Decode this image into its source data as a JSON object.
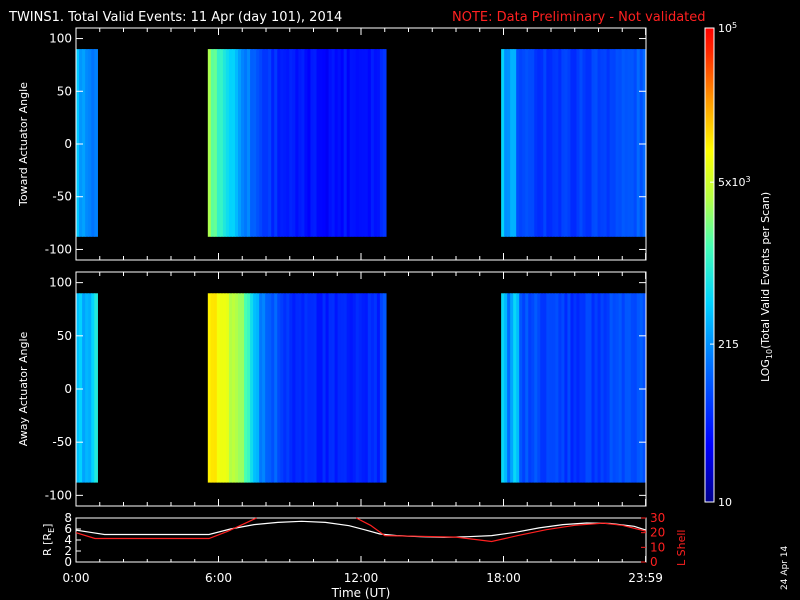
{
  "chart_data": {
    "type": "heatmap",
    "title": "TWINS1. Total Valid Events: 11 Apr (day 101), 2014",
    "note": "NOTE: Data Preliminary - Not validated",
    "xlabel": "Time (UT)",
    "x_ticks": [
      "0:00",
      "6:00",
      "12:00",
      "18:00",
      "23:59"
    ],
    "x_tick_hours": [
      0,
      6,
      12,
      18,
      23.983
    ],
    "xlim_hours": [
      0,
      24
    ],
    "panels": [
      {
        "name": "toward",
        "ylabel": "Toward Actuator Angle",
        "ylim": [
          -110,
          110
        ],
        "y_ticks": [
          100,
          50,
          0,
          -50,
          -100
        ],
        "data_angle_range": [
          -88,
          90
        ],
        "segments": [
          {
            "start_hour": 0.0,
            "end_hour": 0.9,
            "profile": [
              [
                0,
                0.4
              ],
              [
                0.35,
                0.34
              ],
              [
                0.6,
                0.3
              ],
              [
                1,
                0.28
              ]
            ]
          },
          {
            "start_hour": 5.55,
            "end_hour": 13.05,
            "profile": [
              [
                0,
                0.62
              ],
              [
                0.08,
                0.5
              ],
              [
                0.18,
                0.36
              ],
              [
                0.3,
                0.22
              ],
              [
                0.5,
                0.14
              ],
              [
                0.7,
                0.14
              ],
              [
                0.97,
                0.16
              ],
              [
                1,
                0.22
              ]
            ]
          },
          {
            "start_hour": 17.9,
            "end_hour": 23.99,
            "profile": [
              [
                0,
                0.48
              ],
              [
                0.04,
                0.28
              ],
              [
                0.08,
                0.42
              ],
              [
                0.12,
                0.22
              ],
              [
                0.4,
                0.2
              ],
              [
                0.7,
                0.22
              ],
              [
                1,
                0.26
              ]
            ]
          }
        ]
      },
      {
        "name": "away",
        "ylabel": "Away Actuator Angle",
        "ylim": [
          -110,
          110
        ],
        "y_ticks": [
          100,
          50,
          0,
          -50,
          -100
        ],
        "data_angle_range": [
          -88,
          90
        ],
        "segments": [
          {
            "start_hour": 0.0,
            "end_hour": 0.9,
            "profile": [
              [
                0,
                0.42
              ],
              [
                0.5,
                0.36
              ],
              [
                1,
                0.5
              ]
            ]
          },
          {
            "start_hour": 5.55,
            "end_hour": 13.05,
            "profile": [
              [
                0,
                0.78
              ],
              [
                0.1,
                0.7
              ],
              [
                0.2,
                0.58
              ],
              [
                0.3,
                0.3
              ],
              [
                0.5,
                0.18
              ],
              [
                0.7,
                0.16
              ],
              [
                0.97,
                0.18
              ],
              [
                1,
                0.26
              ]
            ]
          },
          {
            "start_hour": 17.9,
            "end_hour": 23.99,
            "profile": [
              [
                0,
                0.46
              ],
              [
                0.05,
                0.3
              ],
              [
                0.1,
                0.44
              ],
              [
                0.14,
                0.24
              ],
              [
                0.5,
                0.2
              ],
              [
                1,
                0.24
              ]
            ]
          }
        ]
      }
    ],
    "colorbar": {
      "label": "LOG10(Total Valid Events per Scan)",
      "label_main": "LOG",
      "label_sub": "10",
      "label_rest": "(Total Valid Events per Scan)",
      "range": [
        10,
        100000
      ],
      "scale": "log",
      "ticks": [
        {
          "value": 100000,
          "base": "10",
          "exp": "5"
        },
        {
          "value": 5000,
          "base": "5x10",
          "exp": "3"
        },
        {
          "value": 215,
          "base": "215",
          "exp": ""
        },
        {
          "value": 10,
          "base": "10",
          "exp": ""
        }
      ]
    },
    "orbit_panel": {
      "left_ylabel": "R [R",
      "left_ylabel_sub": "E",
      "left_ylabel_end": "]",
      "left_ylim": [
        0,
        8
      ],
      "left_ticks": [
        0,
        2,
        4,
        6,
        8
      ],
      "right_ylabel": "L Shell",
      "right_ylim": [
        0,
        30
      ],
      "right_ticks": [
        0,
        10,
        20,
        30
      ],
      "right_color": "#ff2020",
      "series": [
        {
          "axis": "left",
          "color": "#ffffff",
          "x": [
            0,
            0.6,
            1.2,
            2,
            3,
            4,
            5,
            5.6,
            6.5,
            7.5,
            8.5,
            9.5,
            10.5,
            11.5,
            12.2,
            12.8,
            13.5,
            14.5,
            15.5,
            16.5,
            17.5,
            18.5,
            19.5,
            20.5,
            21.5,
            22.5,
            23.5,
            24
          ],
          "y": [
            5.8,
            5.4,
            5.0,
            5.0,
            5.0,
            5.0,
            5.0,
            5.0,
            6.0,
            6.8,
            7.2,
            7.4,
            7.2,
            6.6,
            5.8,
            5.1,
            4.8,
            4.6,
            4.5,
            4.6,
            4.8,
            5.4,
            6.2,
            6.8,
            7.1,
            7.0,
            6.5,
            5.8
          ]
        },
        {
          "axis": "right",
          "color": "#ff2020",
          "x": [
            0,
            0.8,
            2,
            4,
            5.6,
            6.4,
            7.2,
            7.6
          ],
          "y": [
            20,
            16,
            16,
            16,
            16,
            21,
            27,
            30
          ]
        },
        {
          "axis": "right",
          "color": "#ff2020",
          "x": [
            11.8,
            12.4,
            13,
            14.5,
            16,
            17.5,
            18.6,
            19.8,
            21,
            22.2,
            23,
            24
          ],
          "y": [
            30,
            25,
            18,
            17.5,
            17,
            14,
            18,
            22,
            25,
            26.5,
            25,
            21
          ]
        }
      ]
    },
    "date_stamp": "24 Apr 14"
  }
}
